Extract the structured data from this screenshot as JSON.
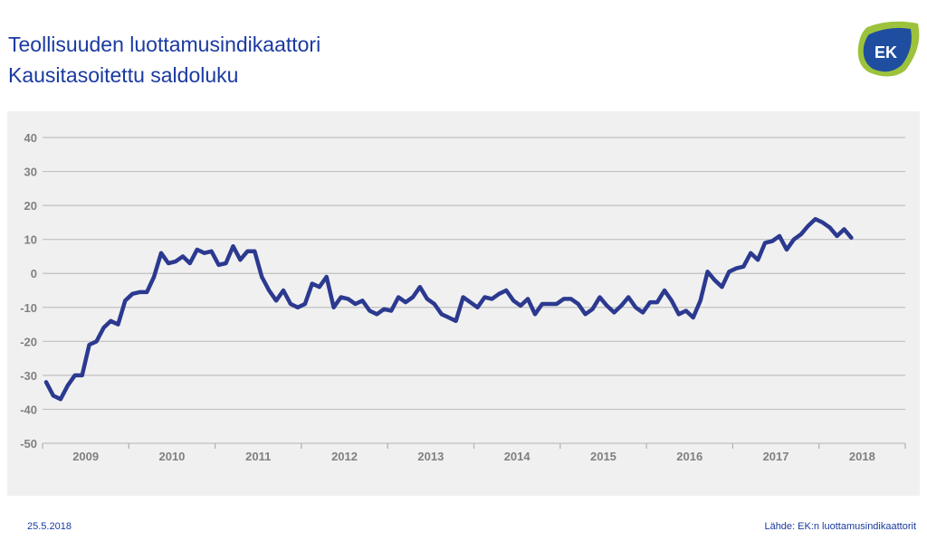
{
  "header": {
    "title": "Teollisuuden luottamusindikaattori",
    "subtitle": "Kausitasoitettu saldoluku",
    "logo_text": "EK"
  },
  "footer": {
    "date": "25.5.2018",
    "source": "Lähde: EK:n luottamusindikaattorit"
  },
  "colors": {
    "line": "#2b3990",
    "title": "#1a3aa0",
    "panel": "#f0f0f0",
    "grid": "#c0c0c0"
  },
  "chart_data": {
    "type": "line",
    "title": "Teollisuuden luottamusindikaattori",
    "subtitle": "Kausitasoitettu saldoluku",
    "xlabel": "",
    "ylabel": "",
    "ylim": [
      -50,
      40
    ],
    "yticks": [
      40,
      30,
      20,
      10,
      0,
      -10,
      -20,
      -30,
      -40,
      -50
    ],
    "xticks": [
      "2009",
      "2010",
      "2011",
      "2012",
      "2013",
      "2014",
      "2015",
      "2016",
      "2017",
      "2018"
    ],
    "x_start": "2009-01",
    "x_end": "2018-05",
    "frequency": "monthly",
    "grid": true,
    "legend": "none",
    "values": [
      -32,
      -36,
      -37,
      -33,
      -30,
      -30,
      -21,
      -20,
      -16,
      -14,
      -15,
      -8,
      -6,
      -5.5,
      -5.5,
      -1,
      6,
      3,
      3.5,
      5,
      3,
      7,
      6,
      6.5,
      2.5,
      3,
      8,
      4,
      6.5,
      6.5,
      -1,
      -5,
      -8,
      -5,
      -9,
      -10,
      -9,
      -3,
      -4,
      -1,
      -10,
      -7,
      -7.5,
      -9,
      -8,
      -11,
      -12,
      -10.5,
      -11,
      -7,
      -8.5,
      -7,
      -4,
      -7.5,
      -9,
      -12,
      -13,
      -14,
      -7,
      -8.5,
      -10,
      -7,
      -7.5,
      -6,
      -5,
      -8,
      -9.5,
      -7.5,
      -12,
      -9,
      -9,
      -9,
      -7.5,
      -7.5,
      -9,
      -12,
      -10.5,
      -7,
      -9.5,
      -11.5,
      -9.5,
      -7,
      -10,
      -11.5,
      -8.5,
      -8.5,
      -5,
      -8,
      -12,
      -11,
      -13,
      -8,
      0.5,
      -2,
      -4,
      0.5,
      1.5,
      2,
      6,
      4,
      9,
      9.5,
      11,
      7,
      10,
      11.5,
      14,
      16,
      15,
      13.5,
      11,
      13,
      10.5
    ]
  }
}
